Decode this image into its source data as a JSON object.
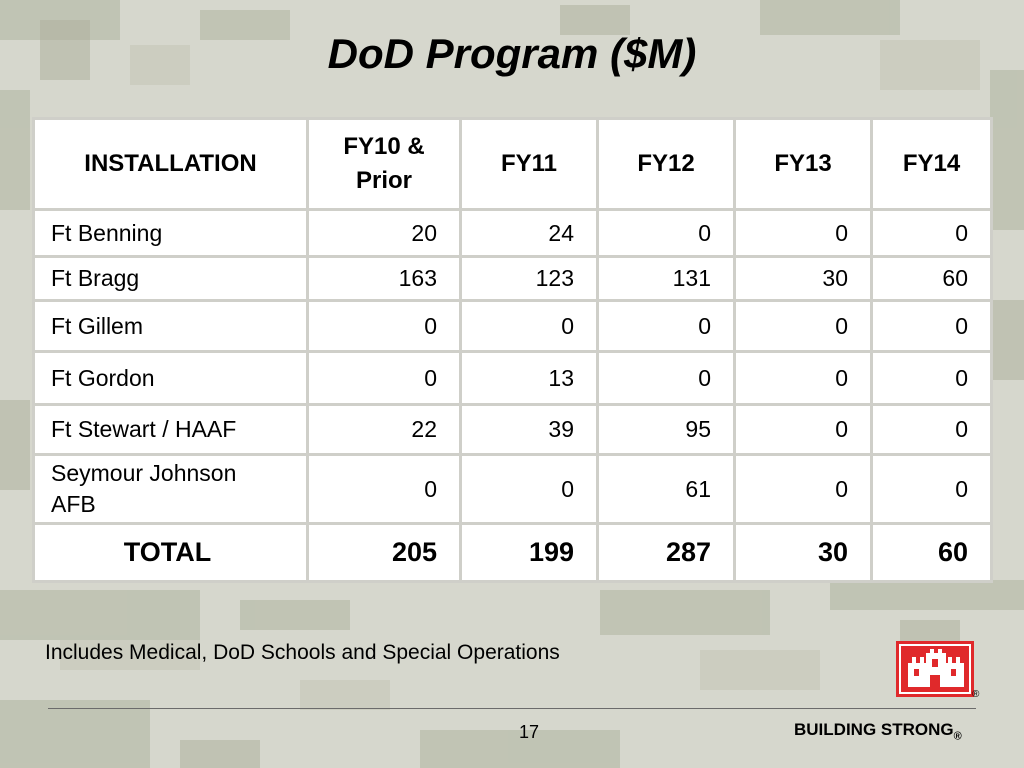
{
  "slide": {
    "title": "DoD Program ($M)",
    "note": "Includes Medical, DoD Schools and Special Operations",
    "page_number": "17",
    "footer_brand": "BUILDING STRONG",
    "footer_brand_mark": "®",
    "logo_mark": "®",
    "logo_icon": "castle-icon",
    "logo_color": "#e0292b"
  },
  "table": {
    "headers": [
      "INSTALLATION",
      "FY10 &\nPrior",
      "FY11",
      "FY12",
      "FY13",
      "FY14"
    ],
    "rows": [
      {
        "installation": "Ft Benning",
        "values": [
          "20",
          "24",
          "0",
          "0",
          "0"
        ]
      },
      {
        "installation": "Ft Bragg",
        "values": [
          "163",
          "123",
          "131",
          "30",
          "60"
        ]
      },
      {
        "installation": "Ft Gillem",
        "values": [
          "0",
          "0",
          "0",
          "0",
          "0"
        ]
      },
      {
        "installation": "Ft Gordon",
        "values": [
          "0",
          "13",
          "0",
          "0",
          "0"
        ]
      },
      {
        "installation": "Ft Stewart / HAAF",
        "values": [
          "22",
          "39",
          "95",
          "0",
          "0"
        ]
      },
      {
        "installation": "Seymour Johnson AFB",
        "values": [
          "0",
          "0",
          "61",
          "0",
          "0"
        ]
      }
    ],
    "total": {
      "label": "TOTAL",
      "values": [
        "205",
        "199",
        "287",
        "30",
        "60"
      ]
    }
  }
}
